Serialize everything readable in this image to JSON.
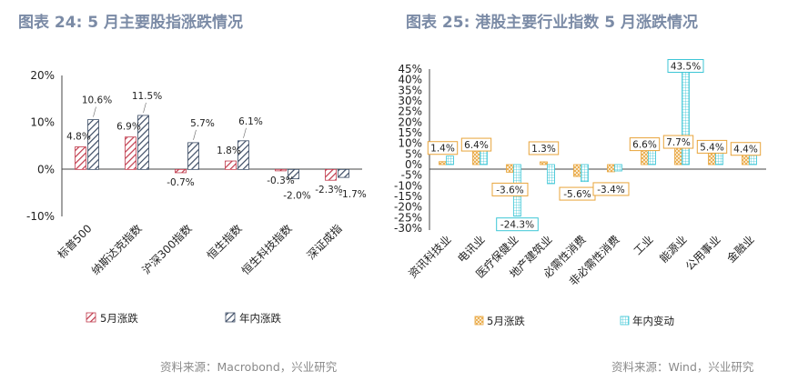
{
  "chart_data": [
    {
      "type": "bar",
      "title": "图表 24:      5 月主要股指涨跌情况",
      "categories": [
        "标普500",
        "纳斯达克指数",
        "沪深300指数",
        "恒生指数",
        "恒生科技指数",
        "深证成指"
      ],
      "series": [
        {
          "name": "5月涨跌",
          "values": [
            4.8,
            6.9,
            -0.7,
            1.8,
            -0.3,
            -2.3
          ],
          "labels": [
            "4.8%",
            "6.9%",
            "-0.7%",
            "1.8%",
            "-0.3%",
            "-2.3%"
          ]
        },
        {
          "name": "年内涨跌",
          "values": [
            10.6,
            11.5,
            5.7,
            6.1,
            -2.0,
            -1.7
          ],
          "labels": [
            "10.6%",
            "11.5%",
            "5.7%",
            "6.1%",
            "-2.0%",
            "-1.7%"
          ]
        }
      ],
      "yticks": [
        "20%",
        "10%",
        "0%",
        "-10%"
      ],
      "ylim": [
        -10,
        20
      ],
      "source": "资料来源：Macrobond，兴业研究",
      "colors": {
        "s1": "#c0394b",
        "s2": "#3a4a63",
        "highlight": "#c0392b"
      }
    },
    {
      "type": "bar",
      "title": "图表 25:      港股主要行业指数 5 月涨跌情况",
      "categories": [
        "资讯科技业",
        "电讯业",
        "医疗保健业",
        "地产建筑业",
        "必需性消费",
        "非必需性消费",
        "工业",
        "能源业",
        "公用事业",
        "金融业"
      ],
      "series": [
        {
          "name": "5月涨跌",
          "values": [
            1.4,
            6.4,
            -3.6,
            1.3,
            -5.6,
            -3.4,
            6.6,
            7.7,
            5.4,
            4.4
          ],
          "labels": [
            "1.4%",
            "6.4%",
            "-3.6%",
            "1.3%",
            "-5.6%",
            "-3.4%",
            "6.6%",
            "7.7%",
            "5.4%",
            "4.4%"
          ]
        },
        {
          "name": "年内变动",
          "values": [
            4.0,
            7.0,
            -24.3,
            -9.0,
            -8.0,
            -3.0,
            7.0,
            43.5,
            8.0,
            7.5
          ],
          "labels": [
            "",
            "",
            "-24.3%",
            "",
            "",
            "",
            "",
            "43.5%",
            "",
            ""
          ]
        }
      ],
      "yticks": [
        "45%",
        "40%",
        "35%",
        "30%",
        "25%",
        "20%",
        "15%",
        "10%",
        "5%",
        "0%",
        "-5%",
        "-10%",
        "-15%",
        "-20%",
        "-25%",
        "-30%"
      ],
      "ylim": [
        -30,
        45
      ],
      "source": "资料来源：Wind，兴业研究",
      "colors": {
        "s1": "#e8a43a",
        "s2": "#3cc6d6"
      }
    }
  ]
}
